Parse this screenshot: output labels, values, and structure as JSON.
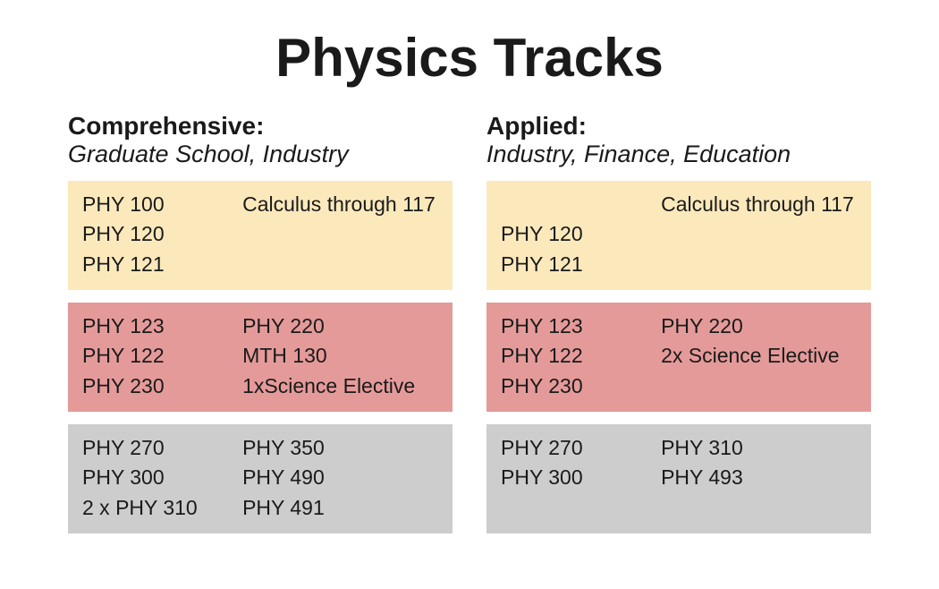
{
  "title": "Physics Tracks",
  "colors": {
    "block1": "#fbe9bc",
    "block2": "#e59a9a",
    "block3": "#cdcdcd",
    "text": "#1a1a1a",
    "bg": "#ffffff"
  },
  "tracks": [
    {
      "name": "Comprehensive:",
      "subtitle": "Graduate School, Industry",
      "blocks": [
        {
          "bg": "#fbe9bc",
          "left": [
            "PHY 100",
            "PHY 120",
            "PHY 121"
          ],
          "right": [
            "Calculus through 117",
            "",
            ""
          ]
        },
        {
          "bg": "#e59a9a",
          "left": [
            "PHY 123",
            "PHY 122",
            "PHY 230"
          ],
          "right": [
            "PHY 220",
            "MTH 130",
            "1xScience  Elective"
          ]
        },
        {
          "bg": "#cdcdcd",
          "left": [
            "PHY 270",
            "PHY 300",
            "2 x PHY 310"
          ],
          "right": [
            "PHY 350",
            "PHY 490",
            "PHY 491"
          ]
        }
      ]
    },
    {
      "name": "Applied:",
      "subtitle": "Industry, Finance, Education",
      "blocks": [
        {
          "bg": "#fbe9bc",
          "left": [
            "",
            "PHY 120",
            "PHY 121"
          ],
          "right": [
            "Calculus through 117",
            "",
            ""
          ]
        },
        {
          "bg": "#e59a9a",
          "left": [
            "PHY 123",
            "PHY 122",
            "PHY 230"
          ],
          "right": [
            "PHY 220",
            "2x Science Elective",
            ""
          ]
        },
        {
          "bg": "#cdcdcd",
          "left": [
            "PHY 270",
            "PHY 300",
            ""
          ],
          "right": [
            "PHY 310",
            "PHY 493",
            ""
          ]
        }
      ]
    }
  ]
}
